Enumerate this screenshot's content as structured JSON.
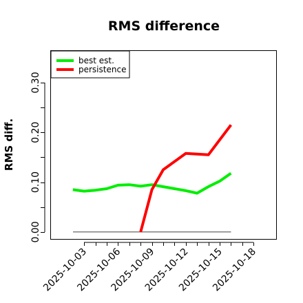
{
  "chart_data": {
    "type": "line",
    "title": "RMS difference",
    "ylabel": "RMS diff.",
    "xlabel": "",
    "x_ticks": [
      "2025-10-03",
      "2025-10-06",
      "2025-10-09",
      "2025-10-12",
      "2025-10-15",
      "2025-10-18"
    ],
    "y_ticks": [
      0.0,
      0.1,
      0.2,
      0.3
    ],
    "y_tick_labels": [
      "0.00",
      "0.10",
      "0.20",
      "0.30"
    ],
    "xlim": [
      "2025-09-30",
      "2025-10-20"
    ],
    "ylim": [
      -0.014,
      0.365
    ],
    "baseline": {
      "x": [
        "2025-10-02",
        "2025-10-16"
      ],
      "y": [
        0.0,
        0.0
      ],
      "color": "#808080"
    },
    "legend_position": "top-left",
    "series": [
      {
        "name": "best est.",
        "color": "#00ee00",
        "x": [
          "2025-10-02",
          "2025-10-03",
          "2025-10-04",
          "2025-10-05",
          "2025-10-06",
          "2025-10-07",
          "2025-10-08",
          "2025-10-09",
          "2025-10-10",
          "2025-10-11",
          "2025-10-12",
          "2025-10-13",
          "2025-10-14",
          "2025-10-15",
          "2025-10-16"
        ],
        "y": [
          0.085,
          0.082,
          0.084,
          0.087,
          0.094,
          0.095,
          0.092,
          0.095,
          0.091,
          0.087,
          0.083,
          0.078,
          0.091,
          0.102,
          0.118
        ]
      },
      {
        "name": "persistence",
        "color": "#ff0000",
        "x": [
          "2025-10-08",
          "2025-10-09",
          "2025-10-10",
          "2025-10-12",
          "2025-10-14",
          "2025-10-16"
        ],
        "y": [
          0.0,
          0.085,
          0.125,
          0.158,
          0.155,
          0.215
        ]
      }
    ]
  }
}
